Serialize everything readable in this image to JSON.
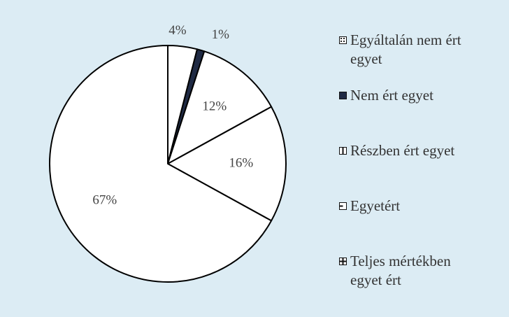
{
  "chart_data": {
    "type": "pie",
    "categories": [
      "Egyáltalán nem ért egyet",
      "Nem ért egyet",
      "Részben ért egyet",
      "Egyetért",
      "Teljes mértékben egyet ért"
    ],
    "values": [
      4,
      1,
      12,
      16,
      67
    ],
    "value_labels": [
      "4%",
      "1%",
      "12%",
      "16%",
      "67%"
    ],
    "colors": [
      "#ffffff",
      "#1f2a44",
      "#ffffff",
      "#ffffff",
      "#ffffff"
    ],
    "legend": "right"
  }
}
